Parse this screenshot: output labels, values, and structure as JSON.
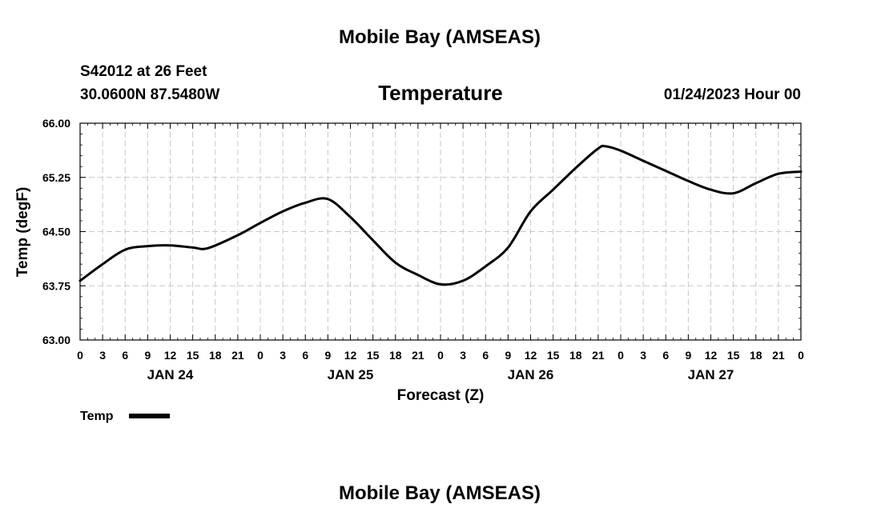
{
  "header": {
    "title": "Mobile Bay (AMSEAS)",
    "station": "S42012 at 26 Feet",
    "location": "30.0600N  87.5480W",
    "datetime": "01/24/2023 Hour 00"
  },
  "footer": {
    "title": "Mobile Bay (AMSEAS)"
  },
  "chart_data": {
    "type": "line",
    "title": "Temperature",
    "xlabel": "Forecast (Z)",
    "ylabel": "Temp (degF)",
    "ylim": [
      63.0,
      66.0
    ],
    "xlim": [
      0,
      96
    ],
    "x_unit": "forecast hour",
    "grid": true,
    "yticks": [
      "63.00",
      "63.75",
      "64.50",
      "65.25",
      "66.00"
    ],
    "ytick_values": [
      63.0,
      63.75,
      64.5,
      65.25,
      66.0
    ],
    "xtick_hours": [
      0,
      3,
      6,
      9,
      12,
      15,
      18,
      21,
      24,
      27,
      30,
      33,
      36,
      39,
      42,
      45,
      48,
      51,
      54,
      57,
      60,
      63,
      66,
      69,
      72,
      75,
      78,
      81,
      84,
      87,
      90,
      93,
      96
    ],
    "xtick_labels": [
      "0",
      "3",
      "6",
      "9",
      "12",
      "15",
      "18",
      "21",
      "0",
      "3",
      "6",
      "9",
      "12",
      "15",
      "18",
      "21",
      "0",
      "3",
      "6",
      "9",
      "12",
      "15",
      "18",
      "21",
      "0",
      "3",
      "6",
      "9",
      "12",
      "15",
      "18",
      "21",
      "0"
    ],
    "day_labels": [
      {
        "label": "JAN 24",
        "hour": 12
      },
      {
        "label": "JAN 25",
        "hour": 36
      },
      {
        "label": "JAN 26",
        "hour": 60
      },
      {
        "label": "JAN 27",
        "hour": 84
      }
    ],
    "legend_position": "bottom-left",
    "series": [
      {
        "name": "Temp",
        "color": "#000000",
        "x": [
          0,
          3,
          6,
          9,
          12,
          15,
          17,
          21,
          24,
          27,
          30,
          33,
          36,
          39,
          42,
          45,
          48,
          51,
          54,
          57,
          60,
          63,
          66,
          69,
          70,
          72,
          75,
          78,
          81,
          84,
          87,
          90,
          93,
          96
        ],
        "y": [
          63.82,
          64.05,
          64.25,
          64.3,
          64.31,
          64.28,
          64.27,
          64.45,
          64.62,
          64.78,
          64.9,
          64.95,
          64.7,
          64.38,
          64.07,
          63.9,
          63.77,
          63.82,
          64.02,
          64.28,
          64.78,
          65.08,
          65.38,
          65.65,
          65.68,
          65.62,
          65.48,
          65.34,
          65.2,
          65.08,
          65.03,
          65.17,
          65.3,
          65.33
        ]
      }
    ]
  }
}
